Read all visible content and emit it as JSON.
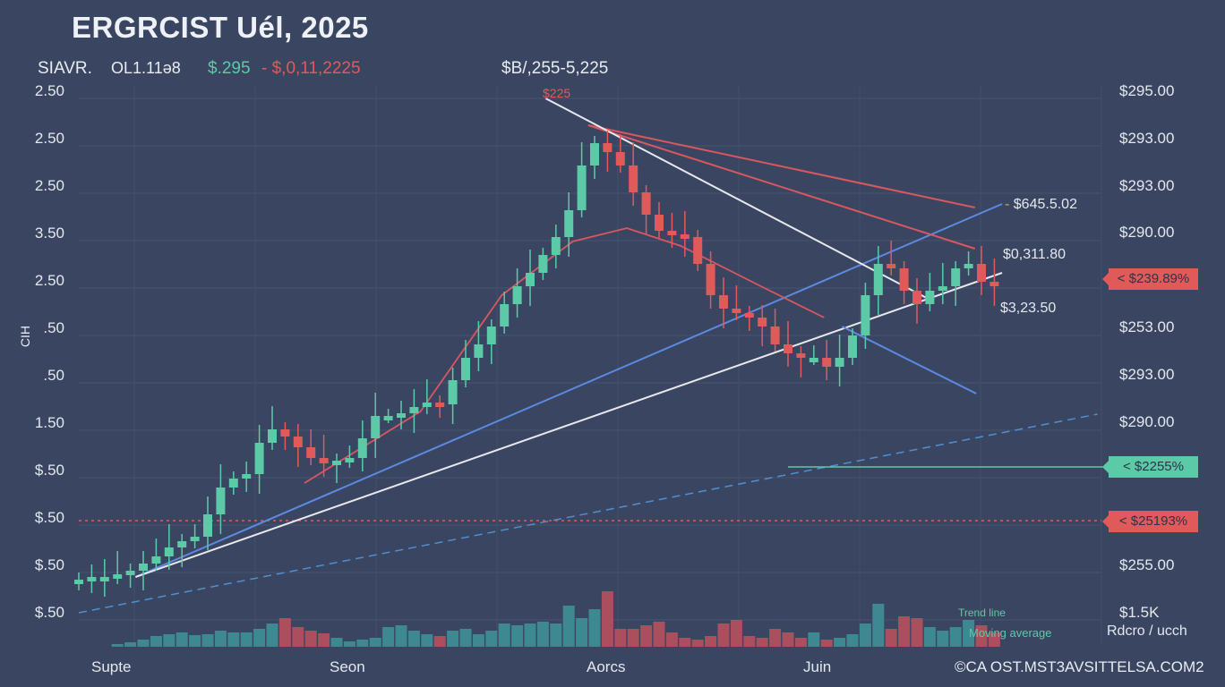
{
  "header": {
    "title": "ERGRCIST Uél, 2025",
    "symbol": "SIAVR.",
    "period": "OL1.11ə8",
    "price_green": "$.295",
    "price_red": "- $,0,11,2225",
    "range": "$B/,255-5,225",
    "peak_label": "$225"
  },
  "left_axis": [
    "2.50",
    "2.50",
    "2.50",
    "3.50",
    "2.50",
    ".50",
    ".50",
    "1.50",
    "$.50",
    "$.50",
    "$.50",
    "$.50"
  ],
  "left_axis_side_label": "CIH",
  "right_axis": [
    "$295.00",
    "$293.00",
    "$293.00",
    "$290.00",
    "$253.00",
    "$293.00",
    "$290.00",
    "$255.00",
    "$1.5K"
  ],
  "annotations": {
    "a1": "$645.5.02",
    "a2": "$0,311.80",
    "a3": "$3,23.50"
  },
  "badges": [
    {
      "label": "< $239.89%",
      "color": "#e05a5a"
    },
    {
      "label": "< $2255%",
      "color": "#5cc9a7"
    },
    {
      "label": "< $25193%",
      "color": "#e05a5a"
    }
  ],
  "x_axis": [
    "Supte",
    "Seon",
    "Aorcs",
    "Juin"
  ],
  "legend": {
    "row1": "Trend line",
    "row2": "Moving average",
    "row2_value": "Rdcro / ucch"
  },
  "footer": "©CA OST.MST3AVSITTELSA.COM2",
  "colors": {
    "up": "#5cc9a7",
    "down": "#e05a5a",
    "blue": "#5b8ae0",
    "white": "#e8e8ee",
    "bg": "#3a4661"
  },
  "chart_data": {
    "type": "candlestick",
    "title": "ERGRCIST Uél, 2025",
    "x_labels": [
      "Supte",
      "Seon",
      "Aorcs",
      "Juin"
    ],
    "closes": [
      52,
      55,
      55,
      58,
      62,
      70,
      78,
      88,
      95,
      100,
      125,
      155,
      165,
      170,
      205,
      220,
      212,
      200,
      188,
      182,
      185,
      188,
      210,
      235,
      235,
      238,
      245,
      250,
      248,
      275,
      300,
      315,
      335,
      360,
      380,
      395,
      415,
      435,
      465,
      515,
      540,
      530,
      515,
      485,
      460,
      442,
      438,
      435,
      405,
      370,
      355,
      350,
      345,
      335,
      315,
      305,
      300,
      300,
      290,
      300,
      325,
      370,
      405,
      400,
      375,
      360,
      375,
      380,
      400,
      405,
      385,
      380
    ],
    "volume": [
      0,
      0,
      0,
      3,
      5,
      8,
      12,
      14,
      16,
      13,
      14,
      18,
      16,
      16,
      20,
      26,
      32,
      22,
      18,
      15,
      10,
      6,
      8,
      10,
      22,
      24,
      18,
      14,
      12,
      18,
      20,
      14,
      18,
      26,
      24,
      26,
      28,
      26,
      46,
      32,
      42,
      62,
      20,
      20,
      24,
      28,
      16,
      10,
      8,
      12,
      26,
      30,
      12,
      10,
      20,
      16,
      10,
      16,
      8,
      10,
      14,
      26,
      48,
      20,
      34,
      32,
      22,
      18,
      22,
      30,
      24,
      16
    ],
    "lines": {
      "support_white": [
        [
          4.4,
          55
        ],
        [
          71.6,
          395
        ]
      ],
      "support_blue": [
        [
          4.4,
          55
        ],
        [
          71.6,
          472
        ]
      ],
      "resist_red_1": [
        [
          39.5,
          560
        ],
        [
          69.5,
          468
        ]
      ],
      "resist_red_2": [
        [
          39.5,
          560
        ],
        [
          69.5,
          422
        ]
      ],
      "desc_white": [
        [
          36.2,
          590
        ],
        [
          66,
          365
        ]
      ],
      "desc_blue": [
        [
          59.2,
          335
        ],
        [
          69.6,
          260
        ]
      ],
      "ma_red": [
        [
          17.5,
          160
        ],
        [
          26.5,
          240
        ],
        [
          32.8,
          370
        ],
        [
          38.3,
          430
        ],
        [
          42.5,
          445
        ],
        [
          46.7,
          425
        ],
        [
          52.9,
          380
        ],
        [
          57.8,
          345
        ]
      ],
      "dashed_blue": [
        [
          0,
          15
        ],
        [
          79,
          237
        ]
      ],
      "hline_red_value": 118,
      "hline_teal_value": 178
    }
  }
}
